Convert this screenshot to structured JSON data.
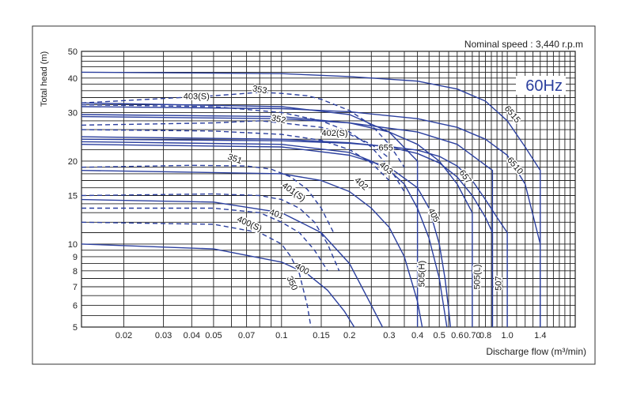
{
  "chart_data": {
    "type": "line",
    "title": "",
    "subtitle": "Nominal speed : 3,440 r.p.m",
    "badge": "60Hz",
    "xlabel": "Discharge flow (m³/min)",
    "ylabel": "Total head (m)",
    "x_scale": "log",
    "y_scale": "log",
    "xlim": [
      0.013,
      2.0
    ],
    "ylim": [
      5,
      50
    ],
    "grid": true,
    "x_ticks": [
      {
        "value": 0.02,
        "label": "0.02"
      },
      {
        "value": 0.03,
        "label": "0.03"
      },
      {
        "value": 0.04,
        "label": "0.04"
      },
      {
        "value": 0.05,
        "label": "0.05"
      },
      {
        "value": 0.07,
        "label": "0.07"
      },
      {
        "value": 0.1,
        "label": "0.1"
      },
      {
        "value": 0.15,
        "label": "0.15"
      },
      {
        "value": 0.2,
        "label": "0.2"
      },
      {
        "value": 0.3,
        "label": "0.3"
      },
      {
        "value": 0.4,
        "label": "0.4"
      },
      {
        "value": 0.5,
        "label": "0.5"
      },
      {
        "value": 0.6,
        "label": "0.6"
      },
      {
        "value": 0.7,
        "label": "0.70"
      },
      {
        "value": 0.8,
        "label": "0.8"
      },
      {
        "value": 1.0,
        "label": "1.0"
      },
      {
        "value": 1.4,
        "label": "1.4"
      }
    ],
    "y_ticks": [
      {
        "value": 5,
        "label": "5"
      },
      {
        "value": 6,
        "label": "6"
      },
      {
        "value": 7,
        "label": "7"
      },
      {
        "value": 8,
        "label": "8"
      },
      {
        "value": 9,
        "label": "9"
      },
      {
        "value": 10,
        "label": "10"
      },
      {
        "value": 15,
        "label": "15"
      },
      {
        "value": 20,
        "label": "20"
      },
      {
        "value": 30,
        "label": "30"
      },
      {
        "value": 40,
        "label": "40"
      },
      {
        "value": 50,
        "label": "50"
      }
    ],
    "colors": {
      "curve": "#2b3f9e",
      "grid": "#222222",
      "badge": "#2b3f9e"
    },
    "series": [
      {
        "name": "6515",
        "dashed": false,
        "x": [
          0.013,
          0.1,
          0.2,
          0.4,
          0.6,
          0.8,
          1.0,
          1.2,
          1.4,
          1.4
        ],
        "y": [
          42,
          41.5,
          40.5,
          39,
          36.5,
          33,
          28,
          22.5,
          18.5,
          5
        ],
        "label": {
          "x": 1.05,
          "y": 29.5,
          "angle": 50
        }
      },
      {
        "name": "6510",
        "dashed": false,
        "x": [
          0.013,
          0.1,
          0.2,
          0.4,
          0.6,
          0.8,
          1.0,
          1.2,
          1.4,
          1.4
        ],
        "y": [
          31.5,
          31,
          30.2,
          28.5,
          26.5,
          24,
          21,
          16.5,
          10,
          5
        ],
        "label": {
          "x": 1.08,
          "y": 19.2,
          "angle": 50
        }
      },
      {
        "name": "657",
        "dashed": false,
        "x": [
          0.013,
          0.1,
          0.2,
          0.3,
          0.4,
          0.5,
          0.6,
          0.7,
          0.8,
          0.9,
          1.0,
          1.0
        ],
        "y": [
          24,
          23.7,
          23.2,
          22.6,
          21.9,
          20.8,
          19.2,
          17,
          14.5,
          12.5,
          11,
          5
        ],
        "label": {
          "x": 0.65,
          "y": 17.5,
          "angle": 55
        }
      },
      {
        "name": "655",
        "dashed": false,
        "x": [
          0.013,
          0.1,
          0.2,
          0.3,
          0.4,
          0.5,
          0.6,
          0.7,
          0.8,
          0.86,
          0.86
        ],
        "y": [
          24.5,
          24,
          23.3,
          22.5,
          21.3,
          19.7,
          17.5,
          15,
          12.5,
          11,
          5
        ],
        "label": {
          "x": 0.29,
          "y": 22.3,
          "angle": 0
        }
      },
      {
        "name": "507",
        "dashed": false,
        "x": [
          0.013,
          0.1,
          0.2,
          0.4,
          0.6,
          0.86,
          0.86
        ],
        "y": [
          29,
          28.5,
          27.5,
          25.5,
          23,
          18.5,
          5
        ],
        "label": {
          "x": 0.92,
          "y": 7.2,
          "angle": -90
        }
      },
      {
        "name": "505(L)",
        "dashed": false,
        "x": [
          0.013,
          0.1,
          0.2,
          0.3,
          0.4,
          0.5,
          0.6,
          0.7,
          0.7
        ],
        "y": [
          29.5,
          29,
          27.5,
          25.5,
          23,
          20,
          16.5,
          13,
          5
        ],
        "label": {
          "x": 0.74,
          "y": 7.6,
          "angle": -90
        }
      },
      {
        "name": "505(H)",
        "dashed": false,
        "x": [
          0.013,
          0.1,
          0.2,
          0.3,
          0.4,
          0.4
        ],
        "y": [
          32.5,
          31.5,
          29.5,
          25.5,
          20,
          5
        ],
        "label": {
          "x": 0.42,
          "y": 7.8,
          "angle": -90
        }
      },
      {
        "name": "405",
        "dashed": false,
        "x": [
          0.013,
          0.1,
          0.2,
          0.3,
          0.4,
          0.45,
          0.5,
          0.53,
          0.55,
          0.56
        ],
        "y": [
          23,
          22.5,
          21,
          19,
          16,
          13.5,
          10,
          7.5,
          5.8,
          5
        ],
        "label": {
          "x": 0.47,
          "y": 12.7,
          "angle": 62
        }
      },
      {
        "name": "403",
        "dashed": false,
        "x": [
          0.013,
          0.1,
          0.2,
          0.25,
          0.3,
          0.35,
          0.4,
          0.45,
          0.5,
          0.54
        ],
        "y": [
          23.5,
          23,
          21.5,
          20,
          18.5,
          16.5,
          13.5,
          10.5,
          7.5,
          5
        ],
        "label": {
          "x": 0.29,
          "y": 18.8,
          "angle": 40
        }
      },
      {
        "name": "402",
        "dashed": false,
        "x": [
          0.013,
          0.1,
          0.15,
          0.2,
          0.25,
          0.3,
          0.35,
          0.4,
          0.42
        ],
        "y": [
          18.5,
          18,
          17,
          15.5,
          13.5,
          11.5,
          9,
          6.2,
          5
        ],
        "label": {
          "x": 0.225,
          "y": 16.5,
          "angle": 42
        }
      },
      {
        "name": "401",
        "dashed": false,
        "x": [
          0.013,
          0.05,
          0.1,
          0.15,
          0.2,
          0.25,
          0.28
        ],
        "y": [
          14.5,
          14.2,
          13,
          11,
          8.5,
          6,
          5
        ],
        "label": {
          "x": 0.095,
          "y": 12.8,
          "angle": 18
        }
      },
      {
        "name": "400",
        "dashed": false,
        "x": [
          0.013,
          0.05,
          0.1,
          0.13,
          0.16,
          0.19,
          0.21
        ],
        "y": [
          10,
          9.6,
          8.6,
          7.8,
          6.8,
          5.7,
          5
        ],
        "label": {
          "x": 0.123,
          "y": 8.1,
          "angle": 30
        }
      },
      {
        "name": "403(S)",
        "dashed": true,
        "x": [
          0.013,
          0.05,
          0.1,
          0.15,
          0.2,
          0.25,
          0.3,
          0.35
        ],
        "y": [
          32,
          31.5,
          30,
          28,
          25.5,
          22.5,
          19,
          15.5
        ],
        "label": {
          "x": 0.042,
          "y": 34.2,
          "angle": 0
        }
      },
      {
        "name": "353",
        "dashed": true,
        "x": [
          0.013,
          0.05,
          0.08,
          0.1,
          0.13,
          0.15,
          0.2,
          0.25,
          0.3,
          0.35
        ],
        "y": [
          32.5,
          34.5,
          35.5,
          35.2,
          34.5,
          33.5,
          30.5,
          27,
          23,
          19
        ],
        "label": {
          "x": 0.08,
          "y": 36.2,
          "angle": 10
        }
      },
      {
        "name": "352",
        "dashed": true,
        "x": [
          0.013,
          0.05,
          0.08,
          0.1,
          0.15,
          0.2,
          0.25,
          0.3
        ],
        "y": [
          27,
          27.5,
          28,
          27.5,
          26.5,
          25,
          23,
          20.5
        ],
        "label": {
          "x": 0.097,
          "y": 28.3,
          "angle": 12
        }
      },
      {
        "name": "402(S)",
        "dashed": true,
        "x": [
          0.013,
          0.05,
          0.1,
          0.15,
          0.2,
          0.25,
          0.3
        ],
        "y": [
          26,
          25.7,
          25,
          23.8,
          22,
          19.7,
          17
        ],
        "label": {
          "x": 0.172,
          "y": 25.2,
          "angle": 0
        }
      },
      {
        "name": "351",
        "dashed": true,
        "x": [
          0.013,
          0.04,
          0.07,
          0.09,
          0.11,
          0.13,
          0.15,
          0.17
        ],
        "y": [
          19,
          19.3,
          19.2,
          18.7,
          17.5,
          15.8,
          13.5,
          11
        ],
        "label": {
          "x": 0.062,
          "y": 20.3,
          "angle": 20
        }
      },
      {
        "name": "401(S)",
        "dashed": true,
        "x": [
          0.013,
          0.05,
          0.08,
          0.1,
          0.12,
          0.14,
          0.16,
          0.18
        ],
        "y": [
          15,
          15.2,
          15,
          14.5,
          13.5,
          12,
          10,
          8
        ],
        "label": {
          "x": 0.113,
          "y": 15.4,
          "angle": 35
        }
      },
      {
        "name": "400(S)",
        "dashed": true,
        "x": [
          0.013,
          0.05,
          0.08,
          0.1,
          0.12,
          0.14,
          0.16
        ],
        "y": [
          13.5,
          13.5,
          13,
          12,
          11,
          9.5,
          8
        ],
        "label": {
          "x": 0.072,
          "y": 11.8,
          "angle": 24
        }
      },
      {
        "name": "350",
        "dashed": true,
        "x": [
          0.013,
          0.05,
          0.08,
          0.1,
          0.11,
          0.12,
          0.13,
          0.135
        ],
        "y": [
          12,
          11.8,
          11,
          10,
          9,
          7.8,
          6,
          5
        ],
        "label": {
          "x": 0.111,
          "y": 7.2,
          "angle": 65
        }
      }
    ]
  }
}
